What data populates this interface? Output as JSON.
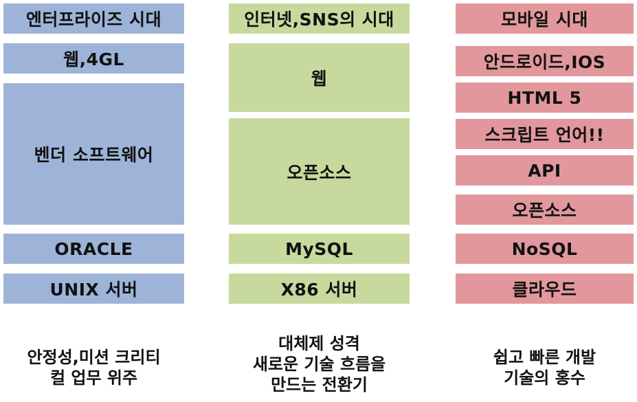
{
  "columns": [
    {
      "title": "엔터프라이즈 시대",
      "layers": [
        "웹,4GL",
        "벤더 소프트웨어",
        "ORACLE",
        "UNIX 서버"
      ],
      "caption": [
        "안정성,미션 크리티",
        "컬 업무 위주"
      ],
      "color": "#9db4d8"
    },
    {
      "title": "인터넷,SNS의 시대",
      "layers": [
        "웹",
        "오픈소스",
        "MySQL",
        "X86 서버"
      ],
      "caption": [
        "대체제 성격",
        "새로운 기술 흐름을",
        "만드는 전환기"
      ],
      "color": "#c8d99e"
    },
    {
      "title": "모바일 시대",
      "layers": [
        "안드로이드,IOS",
        "HTML 5",
        "스크립트 언어!!",
        "API",
        "오픈소스",
        "NoSQL",
        "클라우드"
      ],
      "caption": [
        "쉽고 빠른 개발",
        "기술의 홍수"
      ],
      "color": "#e2979c"
    }
  ]
}
